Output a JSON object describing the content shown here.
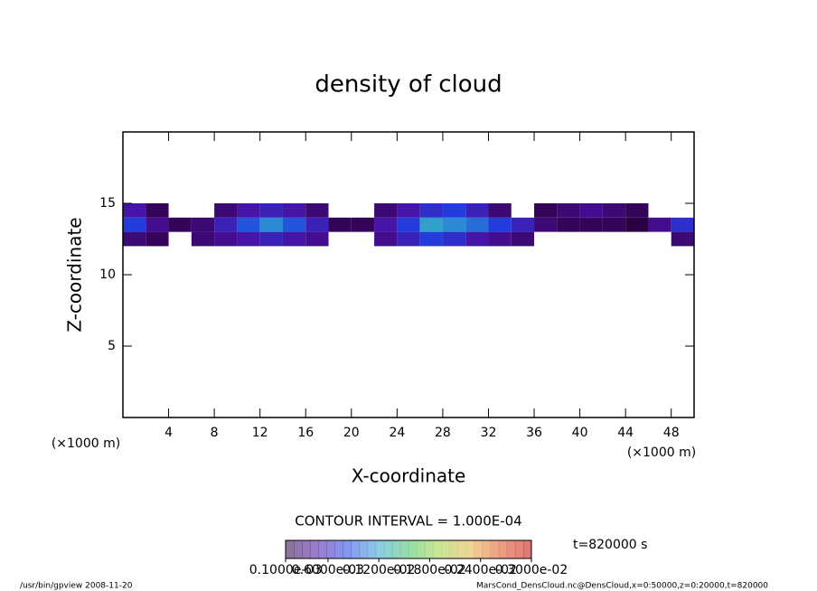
{
  "chart_data": {
    "type": "heatmap",
    "title": "density of cloud",
    "xlabel": "X-coordinate",
    "ylabel": "Z-coordinate",
    "xunits": "(×1000 m)",
    "xlim": [
      0,
      50
    ],
    "xticks": [
      4,
      8,
      12,
      16,
      20,
      24,
      28,
      32,
      36,
      40,
      44,
      48
    ],
    "ylim": [
      0,
      20
    ],
    "yticks": [
      5,
      10,
      15
    ],
    "x": [
      1,
      3,
      5,
      7,
      9,
      11,
      13,
      15,
      17,
      19,
      21,
      23,
      25,
      27,
      29,
      31,
      33,
      35,
      37,
      39,
      41,
      43,
      45,
      47,
      49
    ],
    "y": [
      12.5,
      13.5,
      14.5
    ],
    "z": [
      [
        0.0003,
        0.0002,
        null,
        0.0003,
        0.0004,
        0.0005,
        0.0006,
        0.0005,
        0.0004,
        null,
        null,
        0.0004,
        0.0006,
        0.0008,
        0.0007,
        0.0005,
        0.0004,
        0.0003,
        null,
        null,
        null,
        null,
        null,
        null,
        0.0003
      ],
      [
        0.0008,
        0.0004,
        0.0002,
        0.0003,
        0.0006,
        0.0009,
        0.0011,
        0.0009,
        0.0006,
        0.0002,
        0.0002,
        0.0005,
        0.0008,
        0.0012,
        0.0011,
        0.001,
        0.0008,
        0.0006,
        0.0003,
        0.0002,
        0.0002,
        0.0002,
        0.0001,
        0.0004,
        0.0007
      ],
      [
        0.0005,
        0.0002,
        null,
        null,
        0.0003,
        0.0005,
        0.0006,
        0.0005,
        0.0003,
        null,
        null,
        0.0003,
        0.0005,
        0.0007,
        0.0008,
        0.0006,
        0.0003,
        null,
        0.0002,
        0.0003,
        0.0004,
        0.0003,
        0.0002,
        null,
        null
      ]
    ],
    "colormap": [
      "#2a0040",
      "#4a10a0",
      "#2040e0",
      "#30a0d0",
      "#40c060",
      "#a0d040",
      "#e0b040",
      "#e05020",
      "#c00000"
    ],
    "clim": [
      0.0001,
      0.003
    ],
    "contour_interval": "CONTOUR INTERVAL = 1.000E-04",
    "time_label": "t=820000 s",
    "colorbar_ticks": [
      {
        "value": 0.0001,
        "label": "0.1000e-03"
      },
      {
        "value": 0.0006,
        "label": "0.6000e-03"
      },
      {
        "value": 0.0012,
        "label": "0.1200e-02"
      },
      {
        "value": 0.0018,
        "label": "0.1800e-02"
      },
      {
        "value": 0.0024,
        "label": "0.2400e-02"
      },
      {
        "value": 0.003,
        "label": "0.3000e-02"
      }
    ]
  },
  "footer": {
    "left": "/usr/bin/gpview  2008-11-20",
    "right": "MarsCond_DensCloud.nc@DensCloud,x=0:50000,z=0:20000,t=820000"
  }
}
